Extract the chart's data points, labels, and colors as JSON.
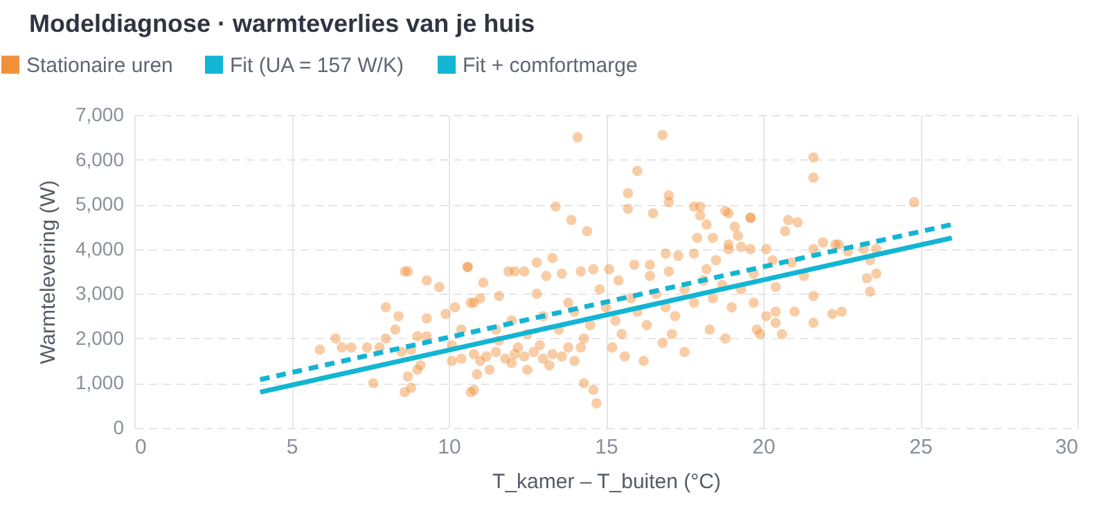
{
  "chart_data": {
    "type": "scatter",
    "title": "Modeldiagnose · warmteverlies van je huis",
    "xlabel": "T_kamer – T_buiten (°C)",
    "ylabel": "Warmtelevering (W)",
    "xlim": [
      0,
      30
    ],
    "xticks": [
      0,
      5,
      10,
      15,
      20,
      25,
      30
    ],
    "ylim": [
      0,
      7000
    ],
    "yticks": [
      {
        "value": 0,
        "label": "0"
      },
      {
        "value": 1000,
        "label": "1,000"
      },
      {
        "value": 2000,
        "label": "2,000"
      },
      {
        "value": 3000,
        "label": "3,000"
      },
      {
        "value": 4000,
        "label": "4,000"
      },
      {
        "value": 5000,
        "label": "5,000"
      },
      {
        "value": 6000,
        "label": "6,000"
      },
      {
        "value": 7000,
        "label": "7,000"
      }
    ],
    "grid": true,
    "legend": "top left",
    "series": [
      {
        "name": "Stationaire uren",
        "type": "scatter",
        "marker": "circle",
        "color": "#f0903a",
        "x": [
          5.9,
          6.4,
          6.6,
          6.9,
          7.4,
          7.6,
          7.8,
          8.0,
          8.0,
          8.3,
          8.4,
          8.6,
          8.7,
          8.6,
          8.8,
          8.7,
          9.0,
          9.0,
          9.1,
          9.3,
          9.3,
          9.3,
          9.7,
          9.9,
          10.2,
          10.4,
          10.6,
          10.7,
          10.7,
          8.5,
          8.8,
          10.1,
          10.1,
          10.4,
          14.1,
          16.8,
          16.0,
          15.7,
          15.7,
          17.0,
          17.0,
          16.5,
          13.4,
          13.9,
          14.4,
          17.8,
          18.0,
          18.0,
          18.2,
          18.8,
          18.9,
          19.6,
          17.9,
          18.4,
          18.9,
          19.1,
          19.2,
          19.3,
          19.6,
          10.8,
          14.3,
          14.6,
          14.7,
          10.6,
          11.1,
          11.0,
          10.8,
          11.6,
          11.9,
          12.1,
          12.4,
          12.8,
          13.3,
          13.1,
          13.6,
          14.2,
          14.6,
          15.1,
          15.4,
          15.9,
          16.4,
          16.9,
          17.3,
          17.8,
          18.2,
          18.5,
          18.9,
          10.8,
          11.2,
          11.5,
          11.8,
          12.1,
          12.4,
          12.7,
          13.0,
          13.3,
          13.6,
          11.0,
          12.2,
          12.9,
          11.6,
          13.2,
          12.0,
          14.0,
          13.8,
          11.3,
          10.9,
          12.5,
          11.5,
          12.0,
          12.5,
          13.0,
          13.5,
          14.0,
          14.5,
          14.3,
          15.0,
          15.3,
          15.5,
          15.8,
          16.0,
          16.3,
          16.6,
          16.9,
          17.2,
          17.5,
          17.8,
          18.1,
          18.4,
          18.7,
          19.0,
          19.3,
          15.2,
          15.6,
          16.2,
          16.8,
          17.5,
          17.1,
          18.3,
          18.8,
          14.8,
          13.8,
          12.8,
          16.4,
          17.0,
          14.2,
          21.6,
          21.6,
          24.8,
          19.6,
          20.8,
          21.1,
          20.7,
          21.9,
          22.3,
          22.4,
          22.7,
          23.2,
          23.6,
          23.4,
          23.6,
          23.3,
          23.4,
          21.6,
          21.6,
          21.6,
          22.2,
          22.5,
          21.0,
          20.6,
          19.9,
          19.8,
          20.4,
          20.4,
          21.3,
          19.7,
          20.9,
          20.1,
          20.3,
          19.7,
          20.1,
          20.4
        ],
        "values": [
          1750,
          2000,
          1800,
          1800,
          1800,
          1000,
          1800,
          2700,
          2000,
          2200,
          2500,
          3500,
          3500,
          800,
          900,
          1150,
          2050,
          1300,
          1400,
          3300,
          2450,
          2050,
          3150,
          2550,
          2700,
          2200,
          3600,
          2800,
          800,
          1700,
          1750,
          1850,
          1500,
          1550,
          6500,
          6550,
          5750,
          5250,
          4900,
          5200,
          5050,
          4800,
          4950,
          4650,
          4400,
          4950,
          4950,
          4750,
          4550,
          4850,
          4800,
          4700,
          4250,
          4250,
          4100,
          4500,
          4300,
          4050,
          4000,
          850,
          1000,
          850,
          550,
          3600,
          3250,
          2900,
          2800,
          2950,
          3500,
          3500,
          3500,
          3700,
          3800,
          3400,
          3450,
          3500,
          3550,
          3550,
          3300,
          3650,
          3650,
          3900,
          3850,
          3900,
          3550,
          3750,
          4000,
          1650,
          1600,
          1700,
          1550,
          1650,
          1600,
          1700,
          1550,
          1650,
          1600,
          1500,
          1800,
          1850,
          1950,
          1400,
          1450,
          1500,
          1800,
          1300,
          1200,
          1300,
          2200,
          2400,
          2100,
          2500,
          2200,
          2600,
          2300,
          2000,
          2700,
          2400,
          2100,
          2900,
          2600,
          2300,
          3000,
          2700,
          2500,
          3100,
          2800,
          3300,
          2900,
          3200,
          2700,
          3100,
          1800,
          1600,
          1500,
          1900,
          1700,
          2100,
          2200,
          2000,
          3100,
          2800,
          3000,
          3400,
          3500,
          1800,
          6050,
          5600,
          5050,
          4700,
          4650,
          4600,
          4400,
          4150,
          4100,
          4100,
          3950,
          4000,
          4000,
          3750,
          3450,
          3350,
          3050,
          4000,
          2950,
          2350,
          2550,
          2600,
          2600,
          2100,
          2100,
          2200,
          2350,
          3150,
          3400,
          3450,
          3700,
          4000,
          3750,
          2800,
          2500,
          2600
        ]
      },
      {
        "name": "Fit (UA = 157 W/K)",
        "type": "line",
        "line_style": "solid",
        "color": "#12b5d3",
        "x": [
          4,
          26
        ],
        "values": [
          800,
          4250
        ]
      },
      {
        "name": "Fit + comfortmarge",
        "type": "line",
        "line_style": "dashed",
        "color": "#12b5d3",
        "x": [
          4,
          26
        ],
        "values": [
          1080,
          4550
        ]
      }
    ]
  }
}
